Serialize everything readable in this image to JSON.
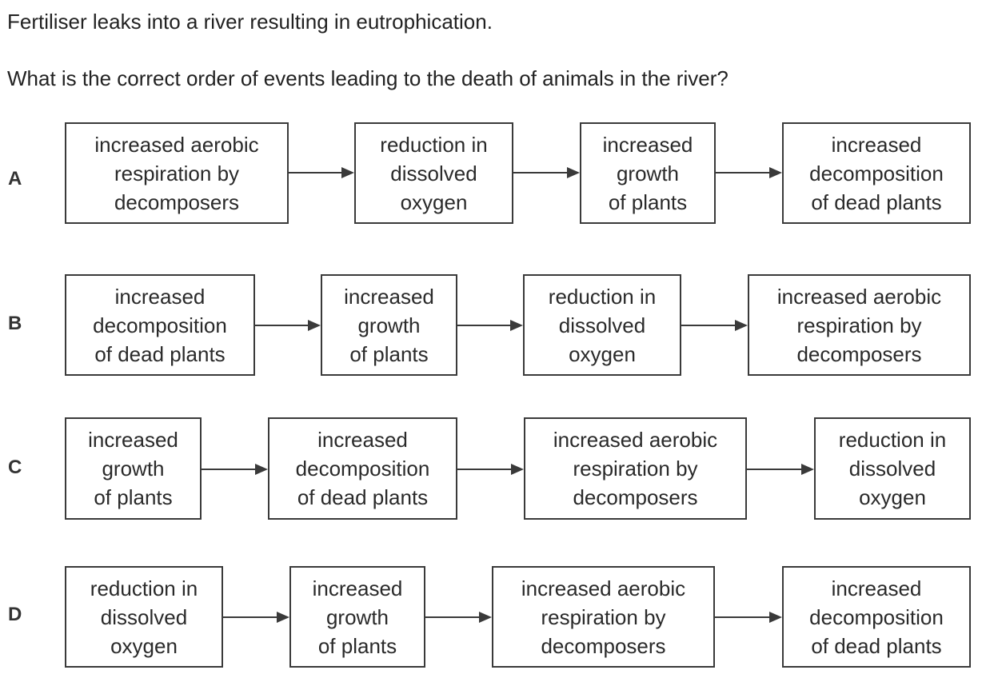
{
  "stem": "Fertiliser leaks into a river resulting in eutrophication.",
  "question": "What is the correct order of events leading to the death of animals in the river?",
  "options": [
    {
      "letter": "A",
      "steps": [
        [
          "increased aerobic",
          "respiration by",
          "decomposers"
        ],
        [
          "reduction in",
          "dissolved",
          "oxygen"
        ],
        [
          "increased",
          "growth",
          "of plants"
        ],
        [
          "increased",
          "decomposition",
          "of dead plants"
        ]
      ]
    },
    {
      "letter": "B",
      "steps": [
        [
          "increased",
          "decomposition",
          "of dead plants"
        ],
        [
          "increased",
          "growth",
          "of plants"
        ],
        [
          "reduction in",
          "dissolved",
          "oxygen"
        ],
        [
          "increased aerobic",
          "respiration by",
          "decomposers"
        ]
      ]
    },
    {
      "letter": "C",
      "steps": [
        [
          "increased",
          "growth",
          "of plants"
        ],
        [
          "increased",
          "decomposition",
          "of dead plants"
        ],
        [
          "increased aerobic",
          "respiration by",
          "decomposers"
        ],
        [
          "reduction in",
          "dissolved",
          "oxygen"
        ]
      ]
    },
    {
      "letter": "D",
      "steps": [
        [
          "reduction in",
          "dissolved",
          "oxygen"
        ],
        [
          "increased",
          "growth",
          "of plants"
        ],
        [
          "increased aerobic",
          "respiration by",
          "decomposers"
        ],
        [
          "increased",
          "decomposition",
          "of dead plants"
        ]
      ]
    }
  ]
}
